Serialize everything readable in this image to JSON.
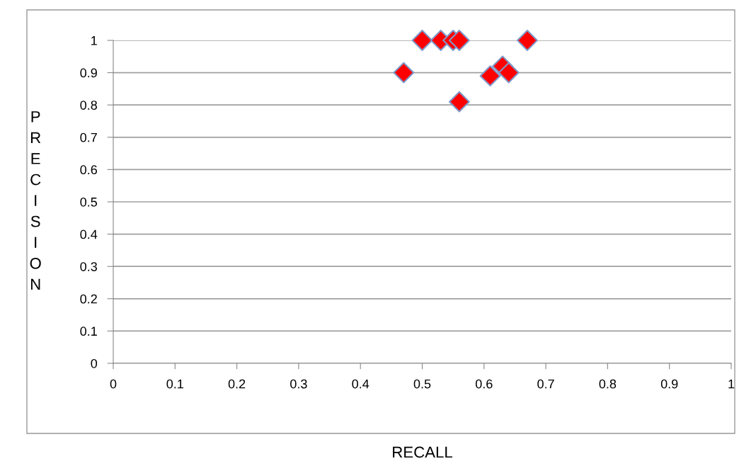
{
  "chart_data": {
    "type": "scatter",
    "xlabel": "RECALL",
    "ylabel": "PRECISION",
    "x": [
      0.5,
      0.53,
      0.55,
      0.56,
      0.67,
      0.47,
      0.61,
      0.63,
      0.64,
      0.56
    ],
    "values": [
      1,
      1,
      1,
      1,
      1,
      0.9,
      0.89,
      0.92,
      0.9,
      0.81
    ],
    "color": "#ff0000",
    "marker": "diamond",
    "xlim": [
      0,
      1
    ],
    "ylim": [
      0,
      1
    ],
    "xticks": [
      0,
      0.1,
      0.2,
      0.3,
      0.4,
      0.5,
      0.6,
      0.7,
      0.8,
      0.9,
      1
    ],
    "yticks": [
      0,
      0.1,
      0.2,
      0.3,
      0.4,
      0.5,
      0.6,
      0.7,
      0.8,
      0.9,
      1
    ],
    "grid": "y",
    "legend": false
  }
}
